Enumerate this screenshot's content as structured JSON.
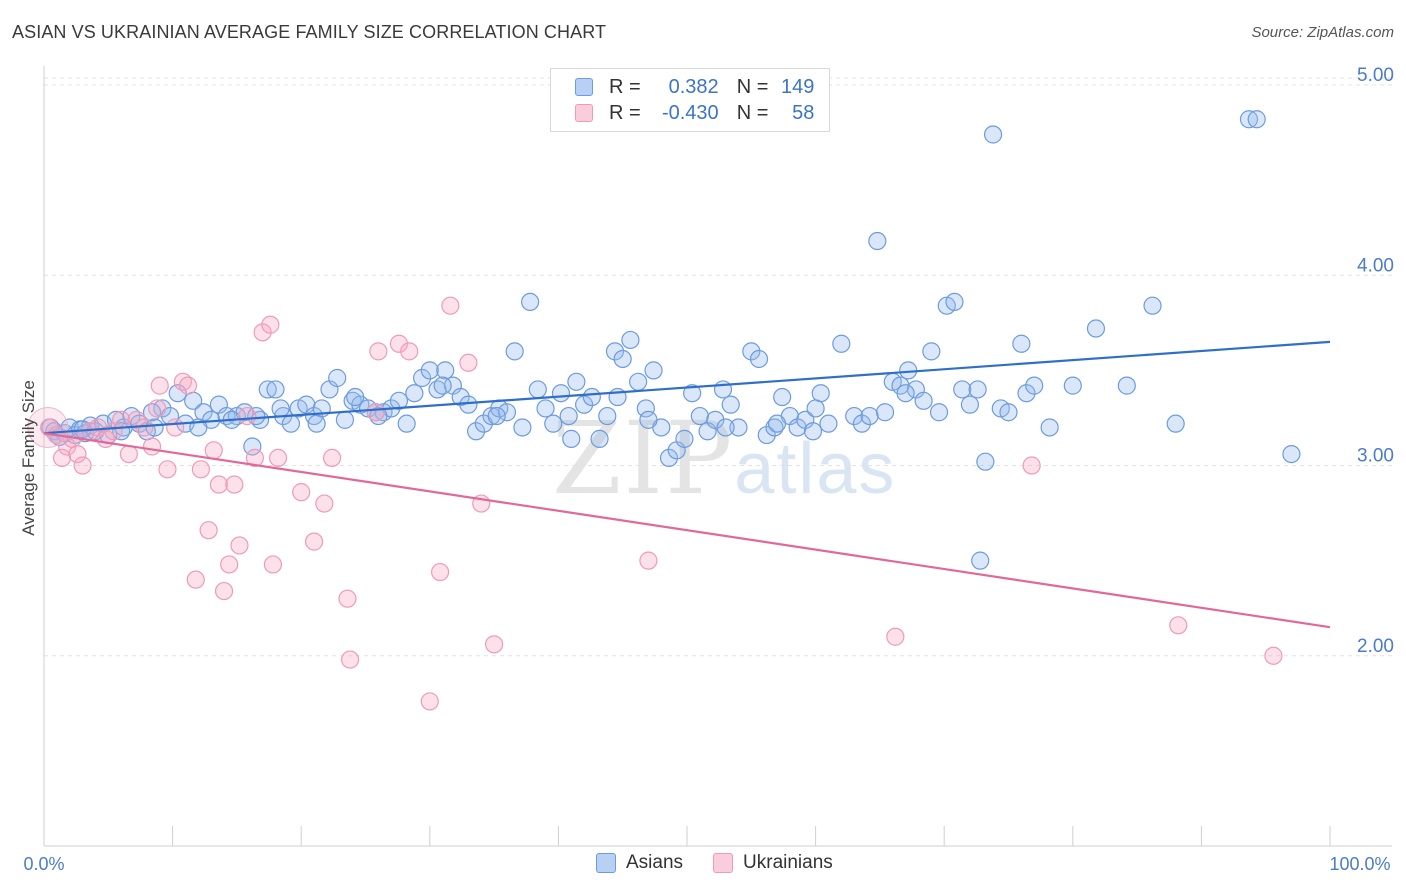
{
  "title": "ASIAN VS UKRAINIAN AVERAGE FAMILY SIZE CORRELATION CHART",
  "source": "Source: ZipAtlas.com",
  "watermark": {
    "zip": "ZIP",
    "atlas": "atlas"
  },
  "colors": {
    "asian": "#6d9be0",
    "ukrainian": "#f09ab8",
    "asian_line": "#2f6fc9",
    "ukrainian_line": "#e0699a"
  },
  "legend": {
    "rows": [
      {
        "r_label": "R =",
        "r_value": "0.382",
        "n_label": "N =",
        "n_value": "149"
      },
      {
        "r_label": "R =",
        "r_value": "-0.430",
        "n_label": "N =",
        "n_value": "58"
      }
    ],
    "bottom": [
      "Asians",
      "Ukrainians"
    ]
  },
  "chart_data": {
    "type": "scatter",
    "title": "ASIAN VS UKRAINIAN AVERAGE FAMILY SIZE CORRELATION CHART",
    "xlabel": "",
    "ylabel": "Average Family Size",
    "xlim": [
      0,
      100
    ],
    "ylim": [
      1.0,
      5.1
    ],
    "x_tick_labels": [
      "0.0%",
      "100.0%"
    ],
    "y_ticks": [
      2.0,
      3.0,
      4.0,
      5.0
    ],
    "y_tick_labels": [
      "2.00",
      "3.00",
      "4.00",
      "5.00"
    ],
    "grid": true,
    "legend_placement": "top-center",
    "series": [
      {
        "name": "Asians",
        "trend": {
          "x": [
            0,
            100
          ],
          "y": [
            3.17,
            3.65
          ]
        },
        "points": [
          [
            0.5,
            3.2
          ],
          [
            0.8,
            3.18
          ],
          [
            1.2,
            3.15
          ],
          [
            1.6,
            3.17
          ],
          [
            2.0,
            3.2
          ],
          [
            2.4,
            3.16
          ],
          [
            2.8,
            3.19
          ],
          [
            3.2,
            3.17
          ],
          [
            3.6,
            3.21
          ],
          [
            4.0,
            3.18
          ],
          [
            4.6,
            3.22
          ],
          [
            5.0,
            3.16
          ],
          [
            5.6,
            3.24
          ],
          [
            6.2,
            3.2
          ],
          [
            6.8,
            3.26
          ],
          [
            7.4,
            3.22
          ],
          [
            8.0,
            3.18
          ],
          [
            8.6,
            3.2
          ],
          [
            9.2,
            3.3
          ],
          [
            9.8,
            3.26
          ],
          [
            10.4,
            3.38
          ],
          [
            11.0,
            3.22
          ],
          [
            11.6,
            3.34
          ],
          [
            12.4,
            3.28
          ],
          [
            13.0,
            3.24
          ],
          [
            13.6,
            3.32
          ],
          [
            14.2,
            3.26
          ],
          [
            15.0,
            3.26
          ],
          [
            15.6,
            3.28
          ],
          [
            16.2,
            3.1
          ],
          [
            16.8,
            3.24
          ],
          [
            17.4,
            3.4
          ],
          [
            18.0,
            3.4
          ],
          [
            18.6,
            3.26
          ],
          [
            19.2,
            3.22
          ],
          [
            19.8,
            3.3
          ],
          [
            20.4,
            3.32
          ],
          [
            21.0,
            3.26
          ],
          [
            21.6,
            3.3
          ],
          [
            22.2,
            3.4
          ],
          [
            22.8,
            3.46
          ],
          [
            23.4,
            3.24
          ],
          [
            24.0,
            3.34
          ],
          [
            24.6,
            3.32
          ],
          [
            25.2,
            3.3
          ],
          [
            25.8,
            3.28
          ],
          [
            26.4,
            3.28
          ],
          [
            27.0,
            3.3
          ],
          [
            27.6,
            3.34
          ],
          [
            28.2,
            3.22
          ],
          [
            28.8,
            3.38
          ],
          [
            29.4,
            3.46
          ],
          [
            30.0,
            3.5
          ],
          [
            30.6,
            3.4
          ],
          [
            31.2,
            3.5
          ],
          [
            31.8,
            3.42
          ],
          [
            32.4,
            3.36
          ],
          [
            33.0,
            3.32
          ],
          [
            33.6,
            3.18
          ],
          [
            34.2,
            3.22
          ],
          [
            34.8,
            3.26
          ],
          [
            35.4,
            3.3
          ],
          [
            36.0,
            3.28
          ],
          [
            36.6,
            3.6
          ],
          [
            37.2,
            3.2
          ],
          [
            37.8,
            3.86
          ],
          [
            38.4,
            3.4
          ],
          [
            39.0,
            3.3
          ],
          [
            39.6,
            3.22
          ],
          [
            40.2,
            3.38
          ],
          [
            40.8,
            3.26
          ],
          [
            41.4,
            3.44
          ],
          [
            42.0,
            3.32
          ],
          [
            42.6,
            3.36
          ],
          [
            43.2,
            3.14
          ],
          [
            43.8,
            3.26
          ],
          [
            44.4,
            3.6
          ],
          [
            45.0,
            3.56
          ],
          [
            45.6,
            3.66
          ],
          [
            46.2,
            3.44
          ],
          [
            46.8,
            3.3
          ],
          [
            47.4,
            3.5
          ],
          [
            48.0,
            3.2
          ],
          [
            48.6,
            3.04
          ],
          [
            49.2,
            3.08
          ],
          [
            49.8,
            3.14
          ],
          [
            50.4,
            3.38
          ],
          [
            51.0,
            3.26
          ],
          [
            51.6,
            3.18
          ],
          [
            52.2,
            3.24
          ],
          [
            52.8,
            3.4
          ],
          [
            53.4,
            3.32
          ],
          [
            54.0,
            3.2
          ],
          [
            55.0,
            3.6
          ],
          [
            55.6,
            3.56
          ],
          [
            56.2,
            3.16
          ],
          [
            56.8,
            3.2
          ],
          [
            57.4,
            3.36
          ],
          [
            58.0,
            3.26
          ],
          [
            58.6,
            3.2
          ],
          [
            59.2,
            3.24
          ],
          [
            59.8,
            3.18
          ],
          [
            60.4,
            3.38
          ],
          [
            61.0,
            3.22
          ],
          [
            62.0,
            3.64
          ],
          [
            63.0,
            3.26
          ],
          [
            63.6,
            3.22
          ],
          [
            64.2,
            3.26
          ],
          [
            64.8,
            4.18
          ],
          [
            65.4,
            3.28
          ],
          [
            66.0,
            3.44
          ],
          [
            66.6,
            3.42
          ],
          [
            67.2,
            3.5
          ],
          [
            67.8,
            3.4
          ],
          [
            68.4,
            3.34
          ],
          [
            69.0,
            3.6
          ],
          [
            69.6,
            3.28
          ],
          [
            70.2,
            3.84
          ],
          [
            70.8,
            3.86
          ],
          [
            71.4,
            3.4
          ],
          [
            72.0,
            3.32
          ],
          [
            72.6,
            3.4
          ],
          [
            73.2,
            3.02
          ],
          [
            73.8,
            4.74
          ],
          [
            74.4,
            3.3
          ],
          [
            75.0,
            3.28
          ],
          [
            76.0,
            3.64
          ],
          [
            76.4,
            3.38
          ],
          [
            77.0,
            3.42
          ],
          [
            78.2,
            3.2
          ],
          [
            80.0,
            3.42
          ],
          [
            81.8,
            3.72
          ],
          [
            84.2,
            3.42
          ],
          [
            86.2,
            3.84
          ],
          [
            88.0,
            3.22
          ],
          [
            93.7,
            4.82
          ],
          [
            94.3,
            4.82
          ],
          [
            97.0,
            3.06
          ],
          [
            72.8,
            2.5
          ],
          [
            44.6,
            3.36
          ],
          [
            35.2,
            3.26
          ],
          [
            18.4,
            3.3
          ],
          [
            26.0,
            3.26
          ],
          [
            21.2,
            3.22
          ],
          [
            31.0,
            3.42
          ],
          [
            41.0,
            3.14
          ],
          [
            53.0,
            3.2
          ],
          [
            60.0,
            3.3
          ],
          [
            12.0,
            3.2
          ],
          [
            6.0,
            3.18
          ],
          [
            14.6,
            3.24
          ],
          [
            24.2,
            3.36
          ],
          [
            47.0,
            3.24
          ],
          [
            57.0,
            3.22
          ],
          [
            67.0,
            3.38
          ],
          [
            1.0,
            3.16
          ],
          [
            3.0,
            3.19
          ],
          [
            8.4,
            3.28
          ],
          [
            16.5,
            3.26
          ]
        ]
      },
      {
        "name": "Ukrainians",
        "trend": {
          "x": [
            0,
            100
          ],
          "y": [
            3.17,
            2.15
          ]
        },
        "points": [
          [
            0.4,
            3.2
          ],
          [
            1.0,
            3.16
          ],
          [
            1.4,
            3.04
          ],
          [
            1.8,
            3.1
          ],
          [
            2.2,
            3.14
          ],
          [
            2.6,
            3.06
          ],
          [
            3.0,
            3.0
          ],
          [
            3.6,
            3.18
          ],
          [
            4.2,
            3.2
          ],
          [
            4.8,
            3.14
          ],
          [
            5.4,
            3.18
          ],
          [
            6.0,
            3.24
          ],
          [
            6.6,
            3.06
          ],
          [
            7.2,
            3.24
          ],
          [
            7.8,
            3.2
          ],
          [
            8.4,
            3.1
          ],
          [
            8.8,
            3.3
          ],
          [
            9.0,
            3.42
          ],
          [
            9.6,
            2.98
          ],
          [
            10.2,
            3.2
          ],
          [
            10.8,
            3.44
          ],
          [
            11.2,
            3.42
          ],
          [
            11.8,
            2.4
          ],
          [
            12.2,
            2.98
          ],
          [
            12.8,
            2.66
          ],
          [
            13.2,
            3.08
          ],
          [
            13.6,
            2.9
          ],
          [
            14.0,
            2.34
          ],
          [
            14.4,
            2.48
          ],
          [
            14.8,
            2.9
          ],
          [
            15.2,
            2.58
          ],
          [
            15.8,
            3.26
          ],
          [
            16.4,
            3.04
          ],
          [
            17.0,
            3.7
          ],
          [
            17.6,
            3.74
          ],
          [
            17.8,
            2.48
          ],
          [
            18.2,
            3.04
          ],
          [
            20.0,
            2.86
          ],
          [
            21.0,
            2.6
          ],
          [
            21.8,
            2.8
          ],
          [
            22.4,
            3.04
          ],
          [
            23.6,
            2.3
          ],
          [
            23.8,
            1.98
          ],
          [
            25.8,
            3.28
          ],
          [
            26.0,
            3.6
          ],
          [
            27.6,
            3.64
          ],
          [
            28.4,
            3.6
          ],
          [
            30.0,
            1.76
          ],
          [
            30.8,
            2.44
          ],
          [
            31.6,
            3.84
          ],
          [
            33.0,
            3.54
          ],
          [
            34.0,
            2.8
          ],
          [
            35.0,
            2.06
          ],
          [
            47.0,
            2.5
          ],
          [
            66.2,
            2.1
          ],
          [
            76.8,
            3.0
          ],
          [
            88.2,
            2.16
          ],
          [
            95.6,
            2.0
          ]
        ]
      }
    ]
  }
}
